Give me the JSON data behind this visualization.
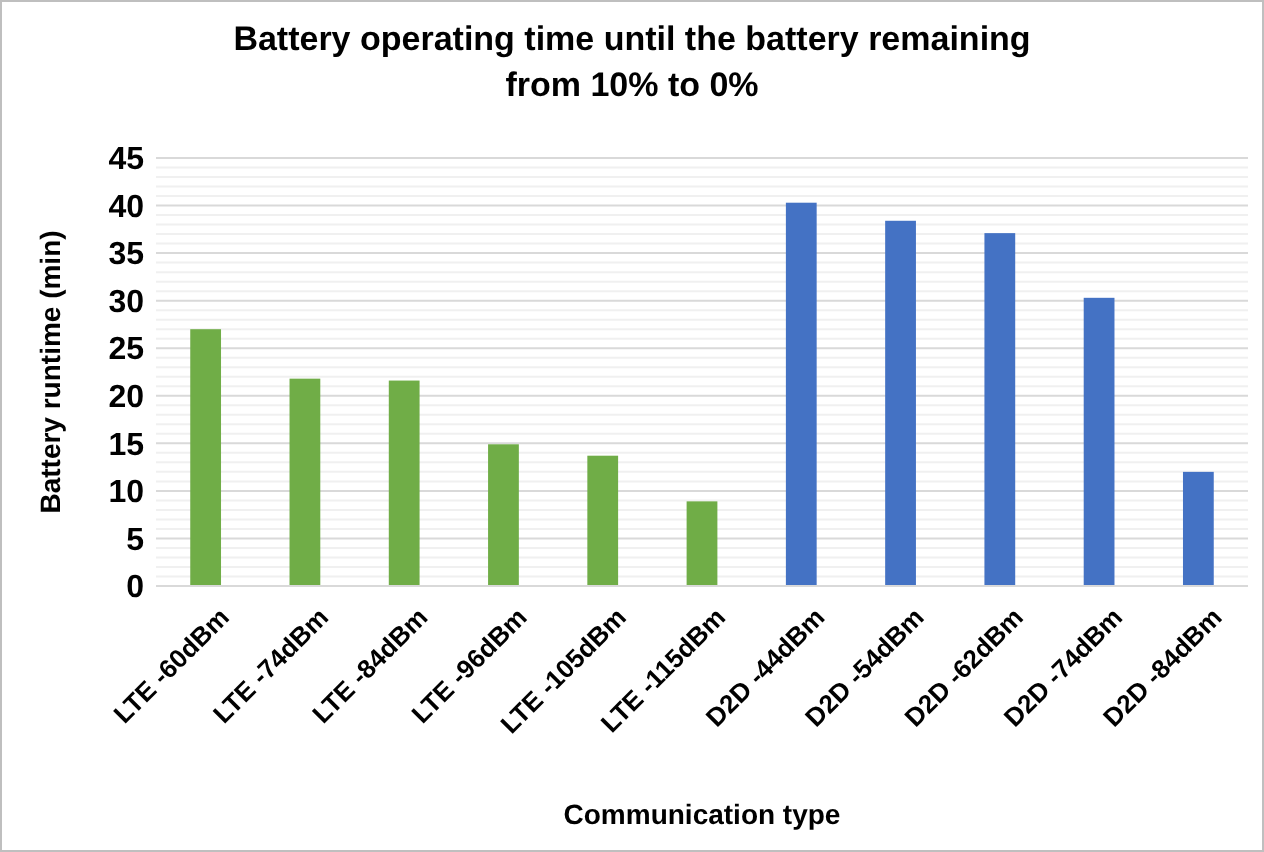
{
  "chart_data": {
    "type": "bar",
    "title": "Battery operating time until the battery remaining from 10% to 0%",
    "xlabel": "Communication type",
    "ylabel": "Battery runtime (min)",
    "categories": [
      "LTE -60dBm",
      "LTE -74dBm",
      "LTE -84dBm",
      "LTE -96dBm",
      "LTE -105dBm",
      "LTE -115dBm",
      "D2D -44dBm",
      "D2D -54dBm",
      "D2D -62dBm",
      "D2D -74dBm",
      "D2D -84dBm"
    ],
    "values": [
      27,
      21.8,
      21.6,
      14.9,
      13.7,
      8.9,
      40.3,
      38.4,
      37.1,
      30.3,
      12.0
    ],
    "colors": [
      "#70ad47",
      "#70ad47",
      "#70ad47",
      "#70ad47",
      "#70ad47",
      "#70ad47",
      "#4472c4",
      "#4472c4",
      "#4472c4",
      "#4472c4",
      "#4472c4"
    ],
    "ylim": [
      0,
      45
    ],
    "yticks": [
      0,
      5,
      10,
      15,
      20,
      25,
      30,
      35,
      40,
      45
    ],
    "grid": "y"
  }
}
